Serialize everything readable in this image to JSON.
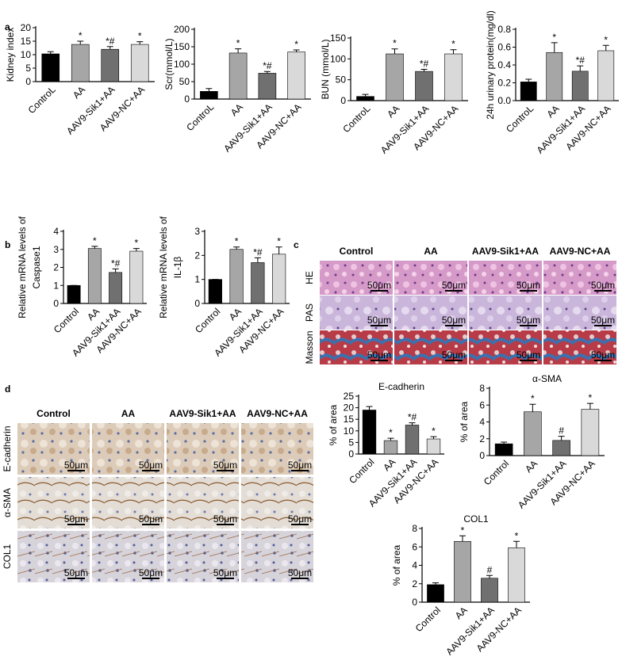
{
  "panel_labels": [
    "a",
    "b",
    "c",
    "d"
  ],
  "chart_data": [
    {
      "type": "bar",
      "ylabel": "Kidney index",
      "categories": [
        "ControL",
        "AA",
        "AAV9-Sik1+AA",
        "AAV9-NC+AA"
      ],
      "values": [
        10.3,
        13.8,
        12,
        13.8
      ],
      "errors": [
        0.8,
        1.2,
        1,
        1
      ],
      "annotations": [
        null,
        "*",
        "*#",
        "*"
      ],
      "colors": [
        "#000000",
        "#a6a6a6",
        "#707070",
        "#d9d9d9"
      ],
      "ylim": [
        0,
        20
      ],
      "yticks": [
        0,
        5,
        10,
        15,
        20
      ]
    },
    {
      "type": "bar",
      "ylabel": "Scr(mmol/L)",
      "categories": [
        "ControL",
        "AA",
        "AAV9-Sik1+AA",
        "AAV9-NC+AA"
      ],
      "values": [
        22,
        132,
        74,
        135
      ],
      "errors": [
        8,
        12,
        5,
        6
      ],
      "annotations": [
        null,
        "*",
        "*#",
        "*"
      ],
      "colors": [
        "#000000",
        "#a6a6a6",
        "#707070",
        "#d9d9d9"
      ],
      "ylim": [
        0,
        200
      ],
      "yticks": [
        0,
        50,
        100,
        150,
        200
      ]
    },
    {
      "type": "bar",
      "ylabel": "BUN (mmol/L)",
      "categories": [
        "ControL",
        "AA",
        "AAV9-Sik1+AA",
        "AAV9-NC+AA"
      ],
      "values": [
        10,
        112,
        70,
        112
      ],
      "errors": [
        5,
        12,
        5,
        10
      ],
      "annotations": [
        null,
        "*",
        "*#",
        "*"
      ],
      "colors": [
        "#000000",
        "#a6a6a6",
        "#707070",
        "#d9d9d9"
      ],
      "ylim": [
        0,
        150
      ],
      "yticks": [
        0,
        50,
        100,
        150
      ]
    },
    {
      "type": "bar",
      "ylabel": "24h urinary protein(mg/dl)",
      "categories": [
        "ControL",
        "AA",
        "AAV9-Sik1+AA",
        "AAV9-NC+AA"
      ],
      "values": [
        0.21,
        0.54,
        0.33,
        0.56
      ],
      "errors": [
        0.03,
        0.11,
        0.06,
        0.06
      ],
      "annotations": [
        null,
        "*",
        "*#",
        "*"
      ],
      "colors": [
        "#000000",
        "#a6a6a6",
        "#707070",
        "#d9d9d9"
      ],
      "ylim": [
        0,
        0.8
      ],
      "yticks": [
        {
          "value": 0,
          "label": "0.0"
        },
        {
          "value": 0.2,
          "label": "0.2"
        },
        {
          "value": 0.4,
          "label": "0.4"
        },
        {
          "value": 0.6,
          "label": "0.6"
        },
        {
          "value": 0.8,
          "label": "0.8"
        }
      ]
    },
    {
      "type": "bar",
      "ylabel": [
        "Relative mRNA levels of",
        "Caspase1"
      ],
      "categories": [
        "Control",
        "AA",
        "AAV9-Sik1+AA",
        "AAV9-NC+AA"
      ],
      "values": [
        1,
        3.05,
        1.72,
        2.9
      ],
      "errors": [
        0,
        0.12,
        0.2,
        0.15
      ],
      "annotations": [
        null,
        "*",
        "*#",
        "*"
      ],
      "colors": [
        "#000000",
        "#a6a6a6",
        "#707070",
        "#d9d9d9"
      ],
      "ylim": [
        0,
        4
      ],
      "yticks": [
        0,
        1,
        2,
        3,
        4
      ]
    },
    {
      "type": "bar",
      "ylabel": [
        "Relative mRNA levels of",
        "IL-1β"
      ],
      "categories": [
        "Control",
        "AA",
        "AAV9-Sik1+AA",
        "AAV9-NC+AA"
      ],
      "values": [
        1,
        2.25,
        1.7,
        2.05
      ],
      "errors": [
        0,
        0.1,
        0.2,
        0.3
      ],
      "annotations": [
        null,
        "*",
        "*#",
        "*"
      ],
      "colors": [
        "#000000",
        "#a6a6a6",
        "#707070",
        "#d9d9d9"
      ],
      "ylim": [
        0,
        3
      ],
      "yticks": [
        0,
        1,
        2,
        3
      ]
    },
    {
      "type": "bar",
      "title": "E-cadherin",
      "ylabel": "% of area",
      "categories": [
        "Control",
        "AA",
        "AAV9-Sik1+AA",
        "AAV9-NC+AA"
      ],
      "values": [
        19,
        5.8,
        12.5,
        6.5
      ],
      "errors": [
        1.5,
        1,
        1,
        1
      ],
      "annotations": [
        null,
        "*",
        "*#",
        "*"
      ],
      "colors": [
        "#000000",
        "#a6a6a6",
        "#707070",
        "#d9d9d9"
      ],
      "ylim": [
        0,
        25
      ],
      "yticks": [
        0,
        5,
        10,
        15,
        20,
        25
      ]
    },
    {
      "type": "bar",
      "title": "α-SMA",
      "ylabel": "% of area",
      "categories": [
        "Control",
        "AA",
        "AAV9-Sik1+AA",
        "AAV9-NC+AA"
      ],
      "values": [
        1.4,
        5.2,
        1.8,
        5.5
      ],
      "errors": [
        0.2,
        0.9,
        0.5,
        0.7
      ],
      "annotations": [
        null,
        "*",
        "#",
        "*"
      ],
      "colors": [
        "#000000",
        "#a6a6a6",
        "#707070",
        "#d9d9d9"
      ],
      "ylim": [
        0,
        8
      ],
      "yticks": [
        0,
        2,
        4,
        6,
        8
      ]
    },
    {
      "type": "bar",
      "title": "COL1",
      "ylabel": "% of area",
      "categories": [
        "Control",
        "AA",
        "AAV9-Sik1+AA",
        "AAV9-NC+AA"
      ],
      "values": [
        1.9,
        6.6,
        2.6,
        5.9
      ],
      "errors": [
        0.2,
        0.6,
        0.3,
        0.7
      ],
      "annotations": [
        null,
        "*",
        "#",
        "*"
      ],
      "colors": [
        "#000000",
        "#a6a6a6",
        "#707070",
        "#d9d9d9"
      ],
      "ylim": [
        0,
        8
      ],
      "yticks": [
        0,
        2,
        4,
        6,
        8
      ]
    }
  ],
  "histology_c": {
    "columns": [
      "Control",
      "AA",
      "AAV9-Sik1+AA",
      "AAV9-NC+AA"
    ],
    "rows": [
      "HE",
      "PAS",
      "Masson"
    ],
    "scale_bar": "50μm"
  },
  "histology_d": {
    "columns": [
      "Control",
      "AA",
      "AAV9-Sik1+AA",
      "AAV9-NC+AA"
    ],
    "rows": [
      "E-cadherin",
      "α-SMA",
      "COL1"
    ],
    "scale_bar": "50μm"
  }
}
